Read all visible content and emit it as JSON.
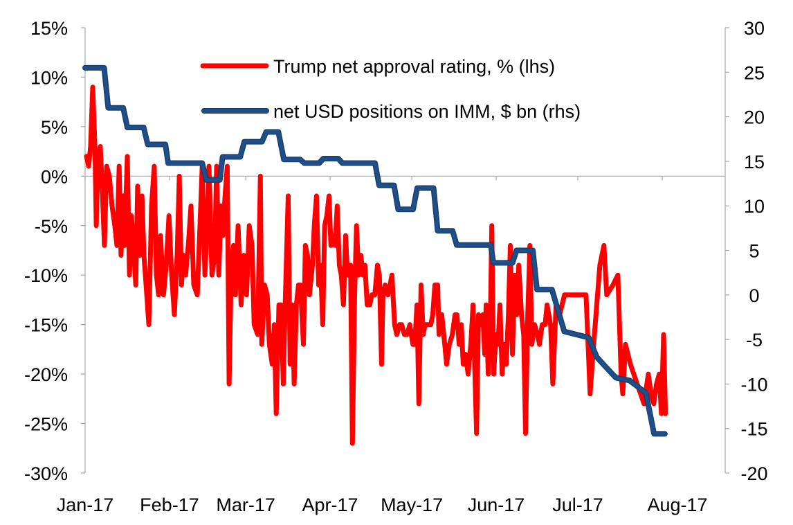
{
  "chart_data": {
    "type": "line",
    "title": "",
    "x_unit": "days since 1 Jan 2017",
    "x_tick_labels": [
      {
        "label": "Jan-17",
        "day": 0
      },
      {
        "label": "Feb-17",
        "day": 31
      },
      {
        "label": "Mar-17",
        "day": 59
      },
      {
        "label": "Apr-17",
        "day": 90
      },
      {
        "label": "May-17",
        "day": 120
      },
      {
        "label": "Jun-17",
        "day": 151
      },
      {
        "label": "Jul-17",
        "day": 181
      },
      {
        "label": "Aug-17",
        "day": 212
      }
    ],
    "xlim": [
      0,
      212
    ],
    "y_left": {
      "ylim": [
        -30,
        15
      ],
      "ticks": [
        15,
        10,
        5,
        0,
        -5,
        -10,
        -15,
        -20,
        -25,
        -30
      ],
      "tick_labels": [
        "15%",
        "10%",
        "5%",
        "0%",
        "-5%",
        "-10%",
        "-15%",
        "-20%",
        "-25%",
        "-30%"
      ]
    },
    "y_right": {
      "ylim": [
        -20,
        30
      ],
      "ticks": [
        30,
        25,
        20,
        15,
        10,
        5,
        0,
        -5,
        -10,
        -15,
        -20
      ],
      "tick_labels": [
        "30",
        "25",
        "20",
        "15",
        "10",
        "5",
        "0",
        "-5",
        "-10",
        "-15",
        "-20"
      ]
    },
    "legend_position": "top-center",
    "series": [
      {
        "name": "Trump net approval rating, % (lhs)",
        "axis": "left",
        "color": "#ff0000",
        "points": [
          [
            0.5,
            2
          ],
          [
            1.3,
            1
          ],
          [
            2.0,
            3
          ],
          [
            2.8,
            9
          ],
          [
            3.6,
            3
          ],
          [
            4.1,
            -5
          ],
          [
            4.8,
            2
          ],
          [
            5.6,
            3
          ],
          [
            6.4,
            -2
          ],
          [
            7.1,
            -7
          ],
          [
            7.9,
            1
          ],
          [
            8.9,
            0
          ],
          [
            9.9,
            -3
          ],
          [
            10.9,
            -5
          ],
          [
            11.7,
            -7
          ],
          [
            12.5,
            1
          ],
          [
            13.2,
            -8
          ],
          [
            14.0,
            -2
          ],
          [
            14.5,
            -7
          ],
          [
            15.5,
            2
          ],
          [
            16.3,
            -10
          ],
          [
            17.0,
            -4
          ],
          [
            17.8,
            -7
          ],
          [
            18.6,
            -11
          ],
          [
            19.3,
            -1
          ],
          [
            20.1,
            -8
          ],
          [
            20.9,
            -2
          ],
          [
            21.6,
            -8
          ],
          [
            22.4,
            -11
          ],
          [
            23.4,
            -15
          ],
          [
            24.4,
            -3
          ],
          [
            25.4,
            1
          ],
          [
            26.2,
            -10
          ],
          [
            27.0,
            -12
          ],
          [
            27.7,
            -6
          ],
          [
            28.8,
            -12
          ],
          [
            29.8,
            -9
          ],
          [
            30.8,
            -4
          ],
          [
            31.8,
            -10
          ],
          [
            32.8,
            -14
          ],
          [
            33.8,
            -8
          ],
          [
            34.6,
            0
          ],
          [
            35.4,
            -11
          ],
          [
            36.1,
            -8
          ],
          [
            36.9,
            -10
          ],
          [
            37.9,
            -7
          ],
          [
            38.9,
            -3
          ],
          [
            39.9,
            -11
          ],
          [
            41.2,
            -12
          ],
          [
            42.2,
            -5
          ],
          [
            43.0,
            1
          ],
          [
            44.0,
            -10
          ],
          [
            44.8,
            -5
          ],
          [
            45.5,
            1
          ],
          [
            46.6,
            -10
          ],
          [
            47.6,
            -8
          ],
          [
            48.3,
            1
          ],
          [
            49.1,
            -10
          ],
          [
            49.9,
            -3
          ],
          [
            50.6,
            -6
          ],
          [
            51.4,
            -2
          ],
          [
            52.2,
            1
          ],
          [
            52.9,
            -21
          ],
          [
            53.7,
            -9
          ],
          [
            54.5,
            -7
          ],
          [
            55.2,
            -12
          ],
          [
            56.2,
            -5
          ],
          [
            57.3,
            -13
          ],
          [
            58.3,
            -8
          ],
          [
            59.3,
            -12
          ],
          [
            60.3,
            -5
          ],
          [
            61.3,
            -7
          ],
          [
            62.1,
            -15
          ],
          [
            63.4,
            -16
          ],
          [
            64.4,
            0
          ],
          [
            64.9,
            -17
          ],
          [
            65.9,
            -11
          ],
          [
            66.9,
            -12
          ],
          [
            67.7,
            -17
          ],
          [
            68.7,
            -19
          ],
          [
            69.5,
            -15
          ],
          [
            70.2,
            -24
          ],
          [
            71.2,
            -13
          ],
          [
            72.0,
            -13
          ],
          [
            72.8,
            -21
          ],
          [
            73.5,
            -13
          ],
          [
            74.6,
            -2
          ],
          [
            75.3,
            -19
          ],
          [
            76.1,
            -13
          ],
          [
            76.8,
            -21
          ],
          [
            77.6,
            -13
          ],
          [
            78.4,
            -11
          ],
          [
            79.1,
            -11
          ],
          [
            80.2,
            -17
          ],
          [
            80.9,
            -7
          ],
          [
            81.7,
            -8
          ],
          [
            82.4,
            -12
          ],
          [
            83.5,
            -9
          ],
          [
            84.2,
            -5
          ],
          [
            85.0,
            -2
          ],
          [
            85.8,
            -11
          ],
          [
            86.5,
            -9
          ],
          [
            87.3,
            -15
          ],
          [
            88.0,
            -5
          ],
          [
            88.8,
            -4
          ],
          [
            89.6,
            -2
          ],
          [
            90.3,
            -7
          ],
          [
            91.1,
            -6
          ],
          [
            91.9,
            -7
          ],
          [
            92.6,
            -3
          ],
          [
            93.4,
            -9
          ],
          [
            94.1,
            -10
          ],
          [
            94.9,
            -13
          ],
          [
            95.7,
            -6
          ],
          [
            96.4,
            -10
          ],
          [
            97.5,
            -9
          ],
          [
            98.2,
            -27
          ],
          [
            99.0,
            -12
          ],
          [
            99.7,
            -5
          ],
          [
            100.5,
            -10
          ],
          [
            101.3,
            -8
          ],
          [
            102.0,
            -10
          ],
          [
            102.8,
            -9
          ],
          [
            103.6,
            -13
          ],
          [
            104.6,
            -13
          ],
          [
            105.3,
            -12
          ],
          [
            106.4,
            -12
          ],
          [
            107.4,
            -9
          ],
          [
            108.1,
            -10
          ],
          [
            108.9,
            -19
          ],
          [
            109.4,
            -12
          ],
          [
            110.2,
            -11
          ],
          [
            111.2,
            -12
          ],
          [
            112.0,
            -11
          ],
          [
            112.7,
            -10
          ],
          [
            113.7,
            -15
          ],
          [
            114.5,
            -16
          ],
          [
            115.5,
            -15
          ],
          [
            116.3,
            -15
          ],
          [
            117.3,
            -16
          ],
          [
            118.3,
            -16
          ],
          [
            119.3,
            -15
          ],
          [
            120.4,
            -17
          ],
          [
            121.1,
            -17
          ],
          [
            121.9,
            -13
          ],
          [
            122.6,
            -23
          ],
          [
            123.4,
            -11
          ],
          [
            124.2,
            -16
          ],
          [
            124.9,
            -15
          ],
          [
            126.0,
            -15
          ],
          [
            127.0,
            -15
          ],
          [
            127.7,
            -14
          ],
          [
            128.5,
            -11
          ],
          [
            129.5,
            -11
          ],
          [
            130.0,
            -16
          ],
          [
            131.0,
            -14
          ],
          [
            132.1,
            -17
          ],
          [
            132.8,
            -19
          ],
          [
            133.8,
            -17
          ],
          [
            134.9,
            -16
          ],
          [
            135.9,
            -14
          ],
          [
            136.6,
            -14
          ],
          [
            137.4,
            -17
          ],
          [
            138.2,
            -15
          ],
          [
            138.9,
            -19
          ],
          [
            139.7,
            -18
          ],
          [
            140.7,
            -20
          ],
          [
            141.7,
            -17
          ],
          [
            142.5,
            -13
          ],
          [
            143.8,
            -26
          ],
          [
            144.5,
            -14
          ],
          [
            145.3,
            -15
          ],
          [
            146.1,
            -14
          ],
          [
            146.8,
            -18
          ],
          [
            147.3,
            -13
          ],
          [
            148.1,
            -20
          ],
          [
            148.9,
            -14
          ],
          [
            149.4,
            -5
          ],
          [
            150.1,
            -20
          ],
          [
            150.9,
            -16
          ],
          [
            151.7,
            -17
          ],
          [
            152.4,
            -13
          ],
          [
            153.2,
            -20
          ],
          [
            153.9,
            -17
          ],
          [
            154.7,
            -19
          ],
          [
            155.5,
            -14
          ],
          [
            156.2,
            -7
          ],
          [
            157.0,
            -18
          ],
          [
            157.8,
            -10
          ],
          [
            158.5,
            -14
          ],
          [
            159.3,
            -9
          ],
          [
            160.3,
            -14
          ],
          [
            161.1,
            -16
          ],
          [
            161.8,
            -26
          ],
          [
            162.6,
            -14
          ],
          [
            163.4,
            -7
          ],
          [
            164.1,
            -17
          ],
          [
            165.1,
            -15
          ],
          [
            166.2,
            -16
          ],
          [
            166.9,
            -17
          ],
          [
            167.9,
            -15
          ],
          [
            169.0,
            -15
          ],
          [
            169.7,
            -13
          ],
          [
            171.0,
            -15
          ],
          [
            171.8,
            -21
          ],
          [
            173.0,
            -13
          ],
          [
            174.3,
            -14
          ],
          [
            176.1,
            -12
          ],
          [
            179.9,
            -12
          ],
          [
            184.0,
            -12
          ],
          [
            185.5,
            -22
          ],
          [
            186.8,
            -17
          ],
          [
            189.1,
            -9
          ],
          [
            190.6,
            -7
          ],
          [
            191.6,
            -12
          ],
          [
            193.9,
            -11
          ],
          [
            195.7,
            -10
          ],
          [
            196.9,
            -20
          ],
          [
            197.5,
            -22
          ],
          [
            198.5,
            -17
          ],
          [
            200.3,
            -19
          ],
          [
            202.8,
            -21
          ],
          [
            205.3,
            -23
          ],
          [
            206.9,
            -20
          ],
          [
            207.9,
            -22
          ],
          [
            208.9,
            -23
          ],
          [
            209.9,
            -21
          ],
          [
            210.9,
            -20
          ],
          [
            211.7,
            -24
          ],
          [
            212.5,
            -16
          ],
          [
            213.2,
            -24
          ]
        ]
      },
      {
        "name": "net USD positions on IMM, $ bn (rhs)",
        "axis": "right",
        "color": "#1f4e89",
        "points": [
          [
            0,
            25.5
          ],
          [
            7,
            25.5
          ],
          [
            8.5,
            21
          ],
          [
            14,
            21
          ],
          [
            15.5,
            18.8
          ],
          [
            21.5,
            18.8
          ],
          [
            23,
            16.9
          ],
          [
            29.5,
            16.9
          ],
          [
            30.5,
            14.8
          ],
          [
            43,
            14.8
          ],
          [
            44.5,
            12.9
          ],
          [
            49.5,
            12.9
          ],
          [
            50.5,
            15.5
          ],
          [
            57,
            15.5
          ],
          [
            58.5,
            17.2
          ],
          [
            65,
            17.2
          ],
          [
            66.5,
            18.3
          ],
          [
            71,
            18.3
          ],
          [
            73,
            15.2
          ],
          [
            79,
            15.2
          ],
          [
            80.5,
            14.8
          ],
          [
            86,
            14.8
          ],
          [
            87.5,
            15.3
          ],
          [
            93,
            15.3
          ],
          [
            94.5,
            14.8
          ],
          [
            106.5,
            14.8
          ],
          [
            108,
            12.3
          ],
          [
            113.5,
            12.3
          ],
          [
            115,
            9.6
          ],
          [
            120.5,
            9.6
          ],
          [
            122,
            12.0
          ],
          [
            128,
            12.0
          ],
          [
            129.5,
            7.2
          ],
          [
            135,
            7.2
          ],
          [
            136.5,
            5.6
          ],
          [
            149,
            5.6
          ],
          [
            150,
            3.6
          ],
          [
            157,
            3.6
          ],
          [
            158.5,
            5.0
          ],
          [
            164.5,
            5.0
          ],
          [
            166,
            0.6
          ],
          [
            171.5,
            0.6
          ],
          [
            176,
            -4.1
          ],
          [
            185,
            -4.8
          ],
          [
            188,
            -7
          ],
          [
            191,
            -8
          ],
          [
            195,
            -9.3
          ],
          [
            200,
            -9.6
          ],
          [
            206,
            -11
          ],
          [
            209,
            -15.6
          ],
          [
            213,
            -15.6
          ]
        ]
      }
    ]
  }
}
